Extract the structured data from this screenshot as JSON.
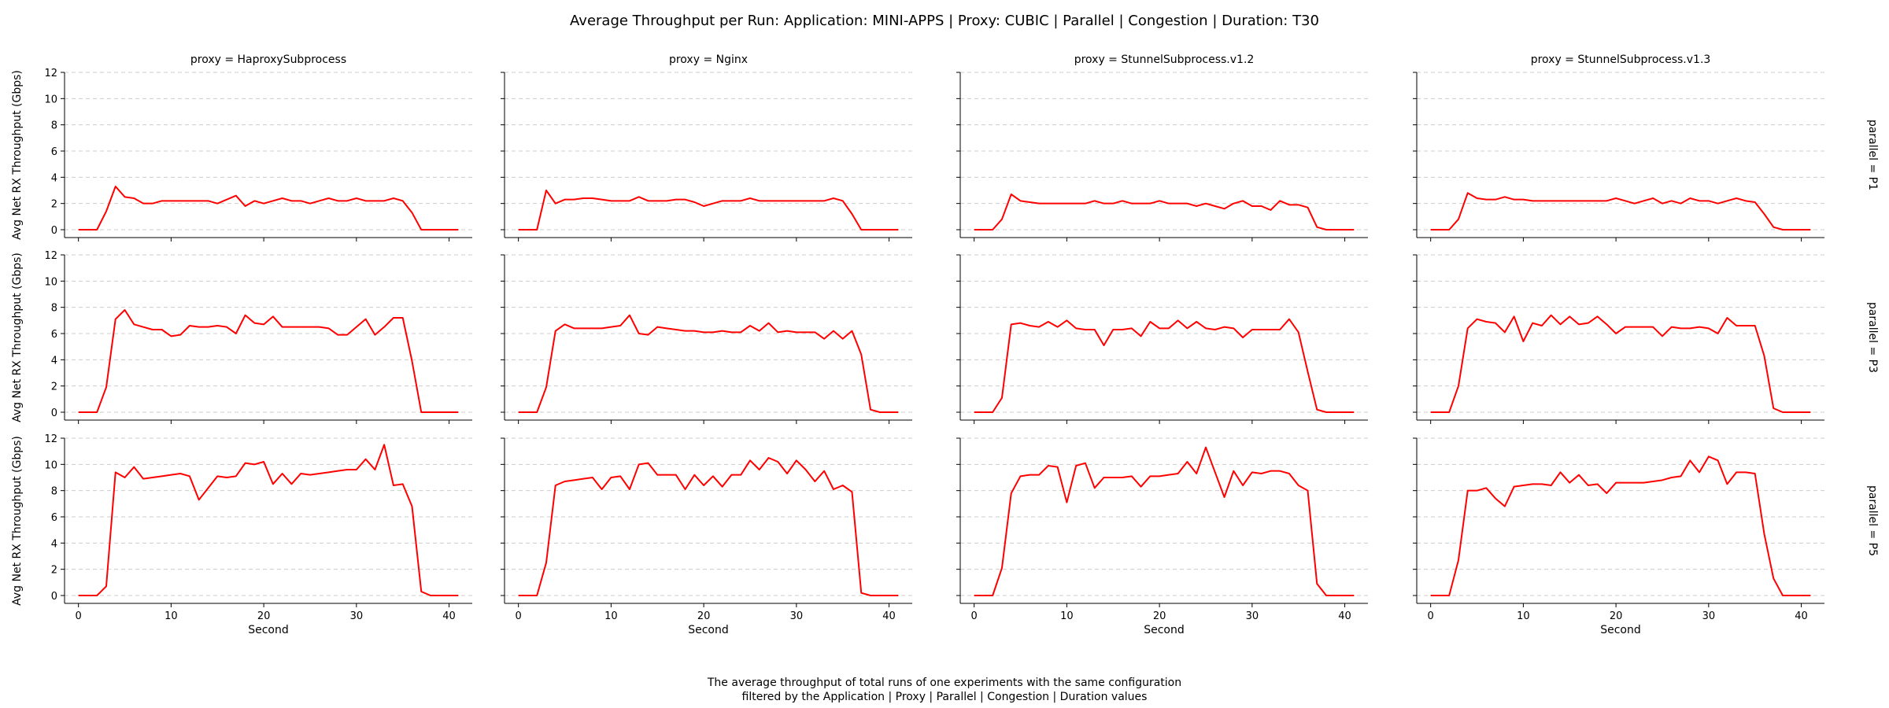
{
  "chart_data": {
    "type": "line",
    "title": "Average Throughput per Run: Application: MINI-APPS | Proxy: CUBIC | Parallel | Congestion | Duration: T30",
    "caption": [
      "The average throughput of total runs of one experiments with the same configuration",
      "filtered by the Application | Proxy | Parallel | Congestion | Duration values"
    ],
    "xlabel": "Second",
    "ylabel": "Avg Net RX Throughput (Gbps)",
    "xlim": [
      -1.5,
      42.5
    ],
    "ylim": [
      -0.6,
      12
    ],
    "xticks": [
      0,
      10,
      20,
      30,
      40
    ],
    "yticks": [
      0,
      2,
      4,
      6,
      8,
      10,
      12
    ],
    "grid": "horizontal dashed",
    "line_color": "#ff0000",
    "columns": [
      "proxy = HaproxySubprocess",
      "proxy = Nginx",
      "proxy = StunnelSubprocess.v1.2",
      "proxy = StunnelSubprocess.v1.3"
    ],
    "rows": [
      "parallel = P1",
      "parallel = P3",
      "parallel = P5"
    ],
    "x": [
      0,
      1,
      2,
      3,
      4,
      5,
      6,
      7,
      8,
      9,
      10,
      11,
      12,
      13,
      14,
      15,
      16,
      17,
      18,
      19,
      20,
      21,
      22,
      23,
      24,
      25,
      26,
      27,
      28,
      29,
      30,
      31,
      32,
      33,
      34,
      35,
      36,
      37,
      38,
      39,
      40,
      41
    ],
    "panels": [
      [
        [
          0,
          0,
          0,
          1.4,
          3.3,
          2.5,
          2.4,
          2.0,
          2.0,
          2.2,
          2.2,
          2.2,
          2.2,
          2.2,
          2.2,
          2.0,
          2.3,
          2.6,
          1.8,
          2.2,
          2.0,
          2.2,
          2.4,
          2.2,
          2.2,
          2.0,
          2.2,
          2.4,
          2.2,
          2.2,
          2.4,
          2.2,
          2.2,
          2.2,
          2.4,
          2.2,
          1.3,
          0,
          0,
          0,
          0,
          0
        ],
        [
          0,
          0,
          0,
          3.0,
          2.0,
          2.3,
          2.3,
          2.4,
          2.4,
          2.3,
          2.2,
          2.2,
          2.2,
          2.5,
          2.2,
          2.2,
          2.2,
          2.3,
          2.3,
          2.1,
          1.8,
          2.0,
          2.2,
          2.2,
          2.2,
          2.4,
          2.2,
          2.2,
          2.2,
          2.2,
          2.2,
          2.2,
          2.2,
          2.2,
          2.4,
          2.2,
          1.2,
          0,
          0,
          0,
          0,
          0
        ],
        [
          0,
          0,
          0,
          0.8,
          2.7,
          2.2,
          2.1,
          2.0,
          2.0,
          2.0,
          2.0,
          2.0,
          2.0,
          2.2,
          2.0,
          2.0,
          2.2,
          2.0,
          2.0,
          2.0,
          2.2,
          2.0,
          2.0,
          2.0,
          1.8,
          2.0,
          1.8,
          1.6,
          2.0,
          2.2,
          1.8,
          1.8,
          1.5,
          2.2,
          1.9,
          1.9,
          1.7,
          0.2,
          0,
          0,
          0,
          0
        ],
        [
          0,
          0,
          0,
          0.8,
          2.8,
          2.4,
          2.3,
          2.3,
          2.5,
          2.3,
          2.3,
          2.2,
          2.2,
          2.2,
          2.2,
          2.2,
          2.2,
          2.2,
          2.2,
          2.2,
          2.4,
          2.2,
          2.0,
          2.2,
          2.4,
          2.0,
          2.2,
          2.0,
          2.4,
          2.2,
          2.2,
          2.0,
          2.2,
          2.4,
          2.2,
          2.1,
          1.2,
          0.2,
          0,
          0,
          0,
          0
        ]
      ],
      [
        [
          0,
          0,
          0,
          1.9,
          7.1,
          7.8,
          6.7,
          6.5,
          6.3,
          6.3,
          5.8,
          5.9,
          6.6,
          6.5,
          6.5,
          6.6,
          6.5,
          6.0,
          7.4,
          6.8,
          6.7,
          7.3,
          6.5,
          6.5,
          6.5,
          6.5,
          6.5,
          6.4,
          5.9,
          5.9,
          6.5,
          7.1,
          5.9,
          6.5,
          7.2,
          7.2,
          3.9,
          0,
          0,
          0,
          0,
          0
        ],
        [
          0,
          0,
          0,
          1.9,
          6.2,
          6.7,
          6.4,
          6.4,
          6.4,
          6.4,
          6.5,
          6.6,
          7.4,
          6.0,
          5.9,
          6.5,
          6.4,
          6.3,
          6.2,
          6.2,
          6.1,
          6.1,
          6.2,
          6.1,
          6.1,
          6.6,
          6.2,
          6.8,
          6.1,
          6.2,
          6.1,
          6.1,
          6.1,
          5.6,
          6.2,
          5.6,
          6.2,
          4.4,
          0.2,
          0,
          0,
          0
        ],
        [
          0,
          0,
          0,
          1.1,
          6.7,
          6.8,
          6.6,
          6.5,
          6.9,
          6.5,
          7.0,
          6.4,
          6.3,
          6.3,
          5.1,
          6.3,
          6.3,
          6.4,
          5.8,
          6.9,
          6.4,
          6.4,
          7.0,
          6.4,
          6.9,
          6.4,
          6.3,
          6.5,
          6.4,
          5.7,
          6.3,
          6.3,
          6.3,
          6.3,
          7.1,
          6.1,
          3.1,
          0.2,
          0,
          0,
          0,
          0
        ],
        [
          0,
          0,
          0,
          2.0,
          6.4,
          7.1,
          6.9,
          6.8,
          6.1,
          7.3,
          5.4,
          6.8,
          6.6,
          7.4,
          6.7,
          7.3,
          6.7,
          6.8,
          7.3,
          6.7,
          6.0,
          6.5,
          6.5,
          6.5,
          6.5,
          5.8,
          6.5,
          6.4,
          6.4,
          6.5,
          6.4,
          6.0,
          7.2,
          6.6,
          6.6,
          6.6,
          4.3,
          0.3,
          0,
          0,
          0,
          0
        ]
      ],
      [
        [
          0,
          0,
          0,
          0.7,
          9.4,
          9.0,
          9.8,
          8.9,
          9.0,
          9.1,
          9.2,
          9.3,
          9.1,
          7.3,
          8.2,
          9.1,
          9.0,
          9.1,
          10.1,
          10.0,
          10.2,
          8.5,
          9.3,
          8.5,
          9.3,
          9.2,
          9.3,
          9.4,
          9.5,
          9.6,
          9.6,
          10.4,
          9.6,
          11.5,
          8.4,
          8.5,
          6.8,
          0.3,
          0,
          0,
          0,
          0
        ],
        [
          0,
          0,
          0,
          2.5,
          8.4,
          8.7,
          8.8,
          8.9,
          9.0,
          8.1,
          9.0,
          9.1,
          8.1,
          10.0,
          10.1,
          9.2,
          9.2,
          9.2,
          8.1,
          9.2,
          8.4,
          9.1,
          8.3,
          9.2,
          9.2,
          10.3,
          9.6,
          10.5,
          10.2,
          9.3,
          10.3,
          9.6,
          8.7,
          9.5,
          8.1,
          8.4,
          7.9,
          0.2,
          0,
          0,
          0,
          0
        ],
        [
          0,
          0,
          0,
          2.1,
          7.8,
          9.1,
          9.2,
          9.2,
          9.9,
          9.8,
          7.1,
          9.9,
          10.1,
          8.2,
          9.0,
          9.0,
          9.0,
          9.1,
          8.3,
          9.1,
          9.1,
          9.2,
          9.3,
          10.2,
          9.3,
          11.3,
          9.4,
          7.5,
          9.5,
          8.4,
          9.4,
          9.3,
          9.5,
          9.5,
          9.3,
          8.4,
          8.0,
          0.9,
          0,
          0,
          0,
          0
        ],
        [
          0,
          0,
          0,
          2.7,
          8.0,
          8.0,
          8.2,
          7.4,
          6.8,
          8.3,
          8.4,
          8.5,
          8.5,
          8.4,
          9.4,
          8.6,
          9.2,
          8.4,
          8.5,
          7.8,
          8.6,
          8.6,
          8.6,
          8.6,
          8.7,
          8.8,
          9.0,
          9.1,
          10.3,
          9.4,
          10.6,
          10.3,
          8.5,
          9.4,
          9.4,
          9.3,
          4.7,
          1.3,
          0,
          0,
          0,
          0
        ]
      ]
    ]
  }
}
